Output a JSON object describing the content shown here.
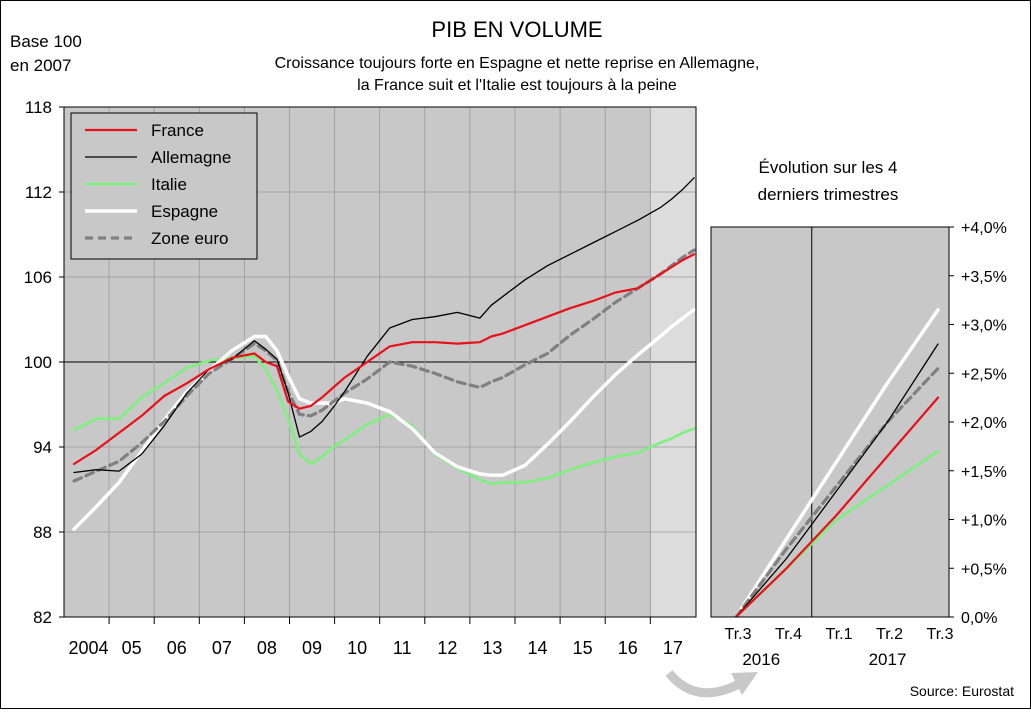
{
  "title": "PIB EN VOLUME",
  "subtitle_line1": "Croissance toujours forte en Espagne et nette reprise en Allemagne,",
  "subtitle_line2": "la France suit et l'Italie est toujours à la peine",
  "unit_line1": "Base 100",
  "unit_line2": "en 2007",
  "source": "Source: Eurostat",
  "colors": {
    "France": "#e8101a",
    "Allemagne": "#000000",
    "Italie": "#7ef07e",
    "Espagne": "#ffffff",
    "Zone euro": "#808080",
    "plot_bg": "#c8c8c8",
    "highlight_bg": "#dcdcdc"
  },
  "chart_data": [
    {
      "type": "line",
      "ylim": [
        82,
        118
      ],
      "yticks": [
        "118",
        "112",
        "106",
        "100",
        "94",
        "88",
        "82"
      ],
      "xlim": [
        2004,
        2017.95
      ],
      "xtick_labels": [
        "2004",
        "05",
        "06",
        "07",
        "08",
        "09",
        "10",
        "11",
        "12",
        "13",
        "14",
        "15",
        "16",
        "17"
      ],
      "grid": true,
      "legend": "top-left",
      "x": [
        2004.0,
        2004.5,
        2005.0,
        2005.5,
        2006.0,
        2006.5,
        2007.0,
        2007.5,
        2008.0,
        2008.25,
        2008.5,
        2008.75,
        2009.0,
        2009.25,
        2009.5,
        2009.75,
        2010.0,
        2010.5,
        2011.0,
        2011.5,
        2012.0,
        2012.5,
        2013.0,
        2013.25,
        2013.5,
        2014.0,
        2014.5,
        2015.0,
        2015.5,
        2016.0,
        2016.5,
        2017.0,
        2017.25,
        2017.5,
        2017.75
      ],
      "series": [
        {
          "name": "France",
          "values": [
            92.8,
            93.8,
            95.0,
            96.2,
            97.6,
            98.5,
            99.5,
            100.3,
            100.6,
            100.0,
            99.7,
            97.2,
            96.7,
            96.9,
            97.5,
            98.2,
            98.9,
            100.0,
            101.1,
            101.4,
            101.4,
            101.3,
            101.4,
            101.8,
            102.0,
            102.6,
            103.2,
            103.8,
            104.3,
            104.9,
            105.2,
            106.2,
            106.7,
            107.2,
            107.6
          ]
        },
        {
          "name": "Allemagne",
          "values": [
            92.2,
            92.4,
            92.3,
            93.5,
            95.5,
            97.8,
            99.5,
            100.2,
            101.5,
            100.9,
            100.2,
            97.8,
            94.7,
            95.1,
            95.8,
            96.8,
            97.9,
            100.4,
            102.4,
            103.0,
            103.2,
            103.5,
            103.1,
            104.0,
            104.6,
            105.8,
            106.8,
            107.6,
            108.4,
            109.2,
            110.0,
            110.9,
            111.5,
            112.2,
            113.0
          ]
        },
        {
          "name": "Italie",
          "values": [
            95.2,
            96.0,
            96.0,
            97.5,
            98.5,
            99.6,
            100.1,
            100.3,
            100.4,
            99.5,
            98.0,
            96.0,
            93.5,
            92.8,
            93.3,
            94.0,
            94.5,
            95.6,
            96.3,
            95.5,
            93.5,
            92.5,
            91.7,
            91.4,
            91.5,
            91.5,
            91.8,
            92.4,
            92.9,
            93.3,
            93.6,
            94.3,
            94.6,
            95.0,
            95.3
          ]
        },
        {
          "name": "Espagne",
          "values": [
            88.2,
            89.8,
            91.5,
            93.7,
            95.9,
            97.9,
            99.4,
            100.8,
            101.8,
            101.8,
            100.8,
            99.0,
            97.4,
            97.1,
            97.1,
            97.1,
            97.4,
            97.1,
            96.5,
            95.3,
            93.6,
            92.6,
            92.1,
            92.0,
            92.0,
            92.7,
            94.2,
            95.8,
            97.5,
            99.1,
            100.5,
            101.8,
            102.5,
            103.1,
            103.7
          ]
        },
        {
          "name": "Zone euro",
          "values": [
            91.6,
            92.3,
            93.0,
            94.3,
            95.8,
            97.6,
            99.2,
            100.2,
            101.3,
            100.8,
            100.1,
            97.9,
            96.3,
            96.2,
            96.6,
            97.2,
            97.8,
            98.8,
            100.0,
            99.7,
            99.2,
            98.6,
            98.2,
            98.6,
            98.9,
            99.8,
            100.6,
            101.9,
            103.0,
            104.2,
            105.2,
            106.2,
            106.8,
            107.4,
            107.9
          ]
        }
      ]
    },
    {
      "type": "line",
      "title_line1": "Évolution sur les 4",
      "title_line2": "derniers trimestres",
      "ylim": [
        0,
        4
      ],
      "yticks": [
        "+4,0%",
        "+3,5%",
        "+3,0%",
        "+2,5%",
        "+2,0%",
        "+1,5%",
        "+1,0%",
        "+0,5%",
        "0,0%"
      ],
      "categories": [
        "Tr.3",
        "Tr.4",
        "Tr.1",
        "Tr.2",
        "Tr.3"
      ],
      "year_labels": [
        "2016",
        "2017"
      ],
      "grid": true,
      "series": [
        {
          "name": "France",
          "values": [
            0.0,
            0.5,
            1.05,
            1.65,
            2.25
          ]
        },
        {
          "name": "Allemagne",
          "values": [
            0.0,
            0.6,
            1.3,
            2.0,
            2.8
          ]
        },
        {
          "name": "Italie",
          "values": [
            0.0,
            0.5,
            1.0,
            1.35,
            1.7
          ]
        },
        {
          "name": "Espagne",
          "values": [
            0.0,
            0.8,
            1.6,
            2.4,
            3.15
          ]
        },
        {
          "name": "Zone euro",
          "values": [
            0.0,
            0.7,
            1.35,
            2.0,
            2.55
          ]
        }
      ]
    }
  ]
}
